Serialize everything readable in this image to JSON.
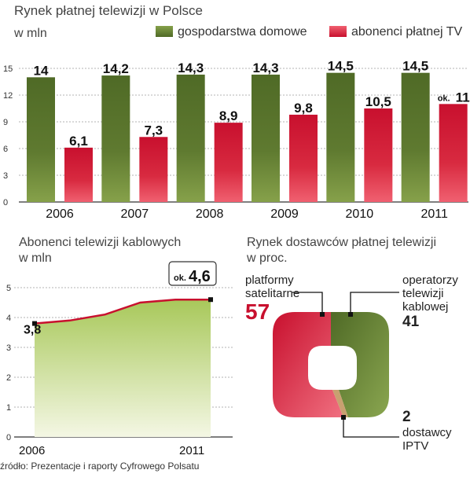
{
  "colors": {
    "green_dark": "#4f6a26",
    "green_light": "#86a14a",
    "red_dark": "#c8102e",
    "red_light": "#f06070",
    "tan": "#c8a070",
    "area_top": "#a8c85a",
    "area_bottom": "#f4f7e4"
  },
  "bar_chart": {
    "title": "Rynek płatnej telewizji w Polsce",
    "unit": "w mln",
    "legend": [
      "gospodarstwa domowe",
      "abonenci płatnej TV"
    ]
  },
  "line_chart": {
    "title": "Abonenci telewizji kablowych",
    "unit": "w mln",
    "first_label": "3,8",
    "last_prefix": "ok.",
    "last_value": "4,6"
  },
  "donut_chart": {
    "title": "Rynek dostawców płatnej telewizji",
    "unit": "w proc.",
    "labels": [
      {
        "name": "platformy satelitarne",
        "line1": "platformy",
        "line2": "satelitarne",
        "value": "57"
      },
      {
        "name": "operatorzy telewizji kablowej",
        "line1": "operatorzy",
        "line2": "telewizji",
        "line3": "kablowej",
        "value": "41"
      },
      {
        "name": "dostawcy IPTV",
        "value": "2",
        "line1": "dostawcy",
        "line2": "IPTV"
      }
    ]
  },
  "source": "źródło: Prezentacje i raporty Cyfrowego Polsatu",
  "chart_data": [
    {
      "type": "bar",
      "title": "Rynek płatnej telewizji w Polsce",
      "ylabel": "w mln",
      "categories": [
        "2006",
        "2007",
        "2008",
        "2009",
        "2010",
        "2011"
      ],
      "series": [
        {
          "name": "gospodarstwa domowe",
          "values": [
            14,
            14.2,
            14.3,
            14.3,
            14.5,
            14.5
          ],
          "labels": [
            "14",
            "14,2",
            "14,3",
            "14,3",
            "14,5",
            "14,5"
          ]
        },
        {
          "name": "abonenci płatnej TV",
          "values": [
            6.1,
            7.3,
            8.9,
            9.8,
            10.5,
            11
          ],
          "labels": [
            "6,1",
            "7,3",
            "8,9",
            "9,8",
            "10,5",
            "11"
          ]
        }
      ],
      "yticks": [
        "0",
        "3",
        "6",
        "9",
        "12",
        "15"
      ],
      "ylim": [
        0,
        15
      ],
      "grid": true,
      "legend": "top-right"
    },
    {
      "type": "area",
      "title": "Abonenci telewizji kablowych",
      "ylabel": "w mln",
      "x": [
        2006,
        2007,
        2008,
        2009,
        2010,
        2011
      ],
      "xticks": [
        "2006",
        "2011"
      ],
      "series": [
        {
          "values": [
            3.8,
            3.9,
            4.1,
            4.5,
            4.6,
            4.6
          ]
        }
      ],
      "yticks": [
        "0",
        "1",
        "2",
        "3",
        "4",
        "5"
      ],
      "ylim": [
        0,
        5
      ],
      "grid": true
    },
    {
      "type": "pie",
      "title": "Rynek dostawców płatnej telewizji",
      "unit": "w proc.",
      "categories": [
        "platformy satelitarne",
        "operatorzy telewizji kablowej",
        "dostawcy IPTV"
      ],
      "values": [
        57,
        41,
        2
      ]
    }
  ]
}
